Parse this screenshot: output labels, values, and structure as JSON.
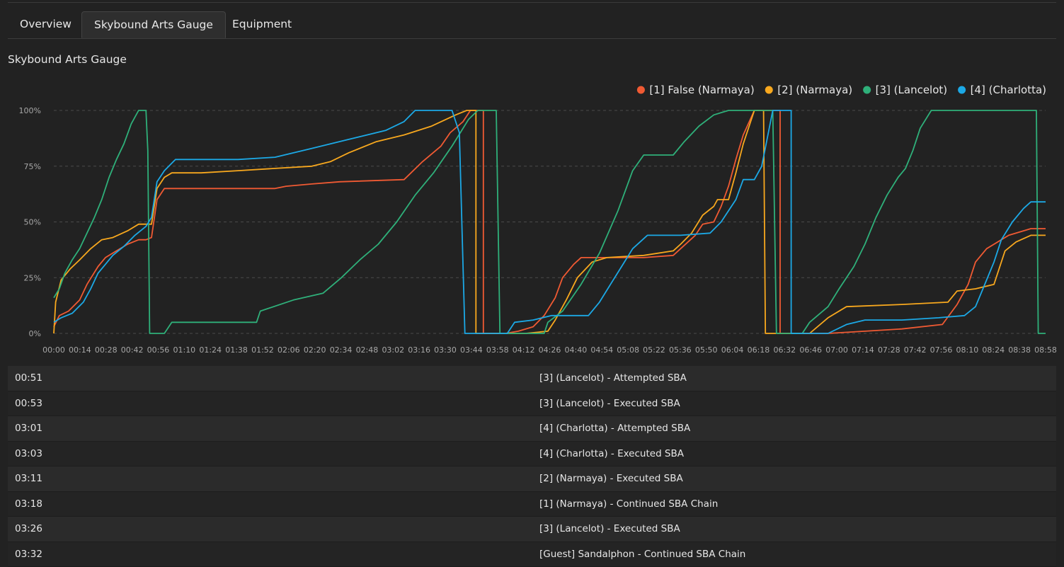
{
  "tabs": [
    {
      "label": "Overview",
      "active": false
    },
    {
      "label": "Skybound Arts Gauge",
      "active": true
    },
    {
      "label": "Equipment",
      "active": false
    }
  ],
  "section_title": "Skybound Arts Gauge",
  "chart_data": {
    "type": "line",
    "title": "",
    "xlabel": "",
    "ylabel": "",
    "ylim": [
      0,
      100
    ],
    "y_ticks": [
      "0%",
      "25%",
      "50%",
      "75%",
      "100%"
    ],
    "x_ticks": [
      "00:00",
      "00:14",
      "00:28",
      "00:42",
      "00:56",
      "01:10",
      "01:24",
      "01:38",
      "01:52",
      "02:06",
      "02:20",
      "02:34",
      "02:48",
      "03:02",
      "03:16",
      "03:30",
      "03:44",
      "03:58",
      "04:12",
      "04:26",
      "04:40",
      "04:54",
      "05:08",
      "05:22",
      "05:36",
      "05:50",
      "06:04",
      "06:18",
      "06:32",
      "06:46",
      "07:00",
      "07:14",
      "07:28",
      "07:42",
      "07:56",
      "08:10",
      "08:24",
      "08:38",
      "08:58"
    ],
    "x_range_seconds": [
      0,
      538
    ],
    "grid": "horizontal-dashed",
    "legend_position": "top-right",
    "series": [
      {
        "name": "[1] False (Narmaya)",
        "color": "#f05a33",
        "points": [
          [
            0,
            3
          ],
          [
            3,
            8
          ],
          [
            8,
            10
          ],
          [
            14,
            15
          ],
          [
            18,
            22
          ],
          [
            24,
            30
          ],
          [
            28,
            34
          ],
          [
            34,
            37
          ],
          [
            40,
            40
          ],
          [
            46,
            42
          ],
          [
            50,
            42
          ],
          [
            53,
            43
          ],
          [
            56,
            60
          ],
          [
            60,
            65
          ],
          [
            80,
            65
          ],
          [
            120,
            65
          ],
          [
            126,
            66
          ],
          [
            140,
            67
          ],
          [
            155,
            68
          ],
          [
            190,
            69
          ],
          [
            200,
            77
          ],
          [
            210,
            84
          ],
          [
            215,
            90
          ],
          [
            222,
            95
          ],
          [
            226,
            100
          ],
          [
            233,
            100
          ],
          [
            233,
            0
          ],
          [
            240,
            0
          ],
          [
            245,
            0
          ],
          [
            252,
            1
          ],
          [
            260,
            3
          ],
          [
            266,
            8
          ],
          [
            272,
            16
          ],
          [
            276,
            25
          ],
          [
            282,
            31
          ],
          [
            286,
            34
          ],
          [
            300,
            34
          ],
          [
            320,
            34
          ],
          [
            336,
            35
          ],
          [
            340,
            38
          ],
          [
            348,
            44
          ],
          [
            352,
            49
          ],
          [
            358,
            50
          ],
          [
            362,
            57
          ],
          [
            366,
            66
          ],
          [
            370,
            78
          ],
          [
            374,
            89
          ],
          [
            380,
            100
          ],
          [
            388,
            100
          ],
          [
            394,
            100
          ],
          [
            394,
            0
          ],
          [
            410,
            0
          ],
          [
            420,
            0
          ],
          [
            440,
            1
          ],
          [
            460,
            2
          ],
          [
            482,
            4
          ],
          [
            490,
            13
          ],
          [
            496,
            22
          ],
          [
            500,
            32
          ],
          [
            506,
            38
          ],
          [
            518,
            44
          ],
          [
            530,
            47
          ],
          [
            538,
            47
          ]
        ]
      },
      {
        "name": "[2] (Narmaya)",
        "color": "#f8a81e",
        "points": [
          [
            0,
            0
          ],
          [
            1,
            14
          ],
          [
            4,
            24
          ],
          [
            9,
            29
          ],
          [
            14,
            33
          ],
          [
            20,
            38
          ],
          [
            26,
            42
          ],
          [
            32,
            43
          ],
          [
            40,
            46
          ],
          [
            46,
            49
          ],
          [
            50,
            49
          ],
          [
            53,
            49
          ],
          [
            56,
            65
          ],
          [
            60,
            70
          ],
          [
            64,
            72
          ],
          [
            80,
            72
          ],
          [
            100,
            73
          ],
          [
            120,
            74
          ],
          [
            140,
            75
          ],
          [
            150,
            77
          ],
          [
            160,
            81
          ],
          [
            175,
            86
          ],
          [
            190,
            89
          ],
          [
            205,
            93
          ],
          [
            218,
            98
          ],
          [
            224,
            100
          ],
          [
            229,
            100
          ],
          [
            229,
            0
          ],
          [
            240,
            0
          ],
          [
            256,
            0
          ],
          [
            268,
            1
          ],
          [
            272,
            6
          ],
          [
            278,
            15
          ],
          [
            284,
            25
          ],
          [
            292,
            32
          ],
          [
            300,
            34
          ],
          [
            320,
            35
          ],
          [
            336,
            37
          ],
          [
            340,
            40
          ],
          [
            346,
            45
          ],
          [
            352,
            53
          ],
          [
            358,
            57
          ],
          [
            360,
            60
          ],
          [
            366,
            60
          ],
          [
            370,
            72
          ],
          [
            374,
            85
          ],
          [
            380,
            100
          ],
          [
            385,
            100
          ],
          [
            386,
            0
          ],
          [
            394,
            0
          ],
          [
            410,
            0
          ],
          [
            420,
            7
          ],
          [
            430,
            12
          ],
          [
            460,
            13
          ],
          [
            485,
            14
          ],
          [
            490,
            19
          ],
          [
            500,
            20
          ],
          [
            510,
            22
          ],
          [
            512,
            27
          ],
          [
            516,
            37
          ],
          [
            522,
            41
          ],
          [
            530,
            44
          ],
          [
            538,
            44
          ]
        ]
      },
      {
        "name": "[3] (Lancelot)",
        "color": "#2fb07a",
        "points": [
          [
            0,
            16
          ],
          [
            3,
            20
          ],
          [
            6,
            27
          ],
          [
            10,
            33
          ],
          [
            14,
            38
          ],
          [
            18,
            45
          ],
          [
            22,
            52
          ],
          [
            26,
            60
          ],
          [
            30,
            70
          ],
          [
            34,
            78
          ],
          [
            38,
            85
          ],
          [
            42,
            94
          ],
          [
            46,
            100
          ],
          [
            50,
            100
          ],
          [
            51,
            82
          ],
          [
            52,
            0
          ],
          [
            54,
            0
          ],
          [
            60,
            0
          ],
          [
            64,
            5
          ],
          [
            100,
            5
          ],
          [
            110,
            5
          ],
          [
            112,
            10
          ],
          [
            130,
            15
          ],
          [
            146,
            18
          ],
          [
            156,
            25
          ],
          [
            166,
            33
          ],
          [
            176,
            40
          ],
          [
            186,
            50
          ],
          [
            196,
            62
          ],
          [
            206,
            72
          ],
          [
            216,
            84
          ],
          [
            225,
            96
          ],
          [
            230,
            100
          ],
          [
            240,
            100
          ],
          [
            242,
            0
          ],
          [
            250,
            0
          ],
          [
            260,
            0
          ],
          [
            266,
            0
          ],
          [
            268,
            5
          ],
          [
            276,
            10
          ],
          [
            286,
            22
          ],
          [
            296,
            36
          ],
          [
            306,
            55
          ],
          [
            314,
            73
          ],
          [
            320,
            80
          ],
          [
            336,
            80
          ],
          [
            342,
            86
          ],
          [
            350,
            93
          ],
          [
            358,
            98
          ],
          [
            366,
            100
          ],
          [
            386,
            100
          ],
          [
            390,
            100
          ],
          [
            392,
            0
          ],
          [
            400,
            0
          ],
          [
            406,
            0
          ],
          [
            410,
            5
          ],
          [
            420,
            12
          ],
          [
            426,
            20
          ],
          [
            434,
            30
          ],
          [
            440,
            40
          ],
          [
            446,
            52
          ],
          [
            452,
            62
          ],
          [
            458,
            70
          ],
          [
            462,
            74
          ],
          [
            466,
            82
          ],
          [
            470,
            92
          ],
          [
            476,
            100
          ],
          [
            500,
            100
          ],
          [
            530,
            100
          ],
          [
            533,
            100
          ],
          [
            534,
            0
          ],
          [
            536,
            0
          ],
          [
            538,
            0
          ]
        ]
      },
      {
        "name": "[4] (Charlotta)",
        "color": "#1ca9e6",
        "points": [
          [
            0,
            5
          ],
          [
            4,
            7
          ],
          [
            10,
            9
          ],
          [
            16,
            14
          ],
          [
            20,
            20
          ],
          [
            24,
            27
          ],
          [
            28,
            31
          ],
          [
            32,
            35
          ],
          [
            38,
            39
          ],
          [
            44,
            44
          ],
          [
            50,
            48
          ],
          [
            53,
            52
          ],
          [
            56,
            68
          ],
          [
            60,
            73
          ],
          [
            66,
            78
          ],
          [
            80,
            78
          ],
          [
            100,
            78
          ],
          [
            120,
            79
          ],
          [
            140,
            83
          ],
          [
            160,
            87
          ],
          [
            180,
            91
          ],
          [
            190,
            95
          ],
          [
            196,
            100
          ],
          [
            204,
            100
          ],
          [
            216,
            100
          ],
          [
            220,
            90
          ],
          [
            223,
            0
          ],
          [
            230,
            0
          ],
          [
            240,
            0
          ],
          [
            246,
            0
          ],
          [
            250,
            5
          ],
          [
            260,
            6
          ],
          [
            270,
            8
          ],
          [
            290,
            8
          ],
          [
            296,
            14
          ],
          [
            302,
            22
          ],
          [
            308,
            30
          ],
          [
            314,
            38
          ],
          [
            322,
            44
          ],
          [
            340,
            44
          ],
          [
            356,
            45
          ],
          [
            362,
            50
          ],
          [
            370,
            60
          ],
          [
            374,
            69
          ],
          [
            380,
            69
          ],
          [
            384,
            75
          ],
          [
            390,
            100
          ],
          [
            398,
            100
          ],
          [
            400,
            100
          ],
          [
            400,
            0
          ],
          [
            410,
            0
          ],
          [
            420,
            0
          ],
          [
            430,
            4
          ],
          [
            440,
            6
          ],
          [
            460,
            6
          ],
          [
            480,
            7
          ],
          [
            494,
            8
          ],
          [
            500,
            12
          ],
          [
            504,
            20
          ],
          [
            510,
            32
          ],
          [
            514,
            42
          ],
          [
            520,
            50
          ],
          [
            526,
            56
          ],
          [
            530,
            59
          ],
          [
            538,
            59
          ]
        ]
      }
    ]
  },
  "events": [
    {
      "time": "00:51",
      "text": "[3] (Lancelot) - Attempted SBA"
    },
    {
      "time": "00:53",
      "text": "[3] (Lancelot) - Executed SBA"
    },
    {
      "time": "03:01",
      "text": "[4] (Charlotta) - Attempted SBA"
    },
    {
      "time": "03:03",
      "text": "[4] (Charlotta) - Executed SBA"
    },
    {
      "time": "03:11",
      "text": "[2] (Narmaya) - Executed SBA"
    },
    {
      "time": "03:18",
      "text": "[1] (Narmaya) - Continued SBA Chain"
    },
    {
      "time": "03:26",
      "text": "[3] (Lancelot) - Executed SBA"
    },
    {
      "time": "03:32",
      "text": "[Guest] Sandalphon - Continued SBA Chain"
    }
  ]
}
